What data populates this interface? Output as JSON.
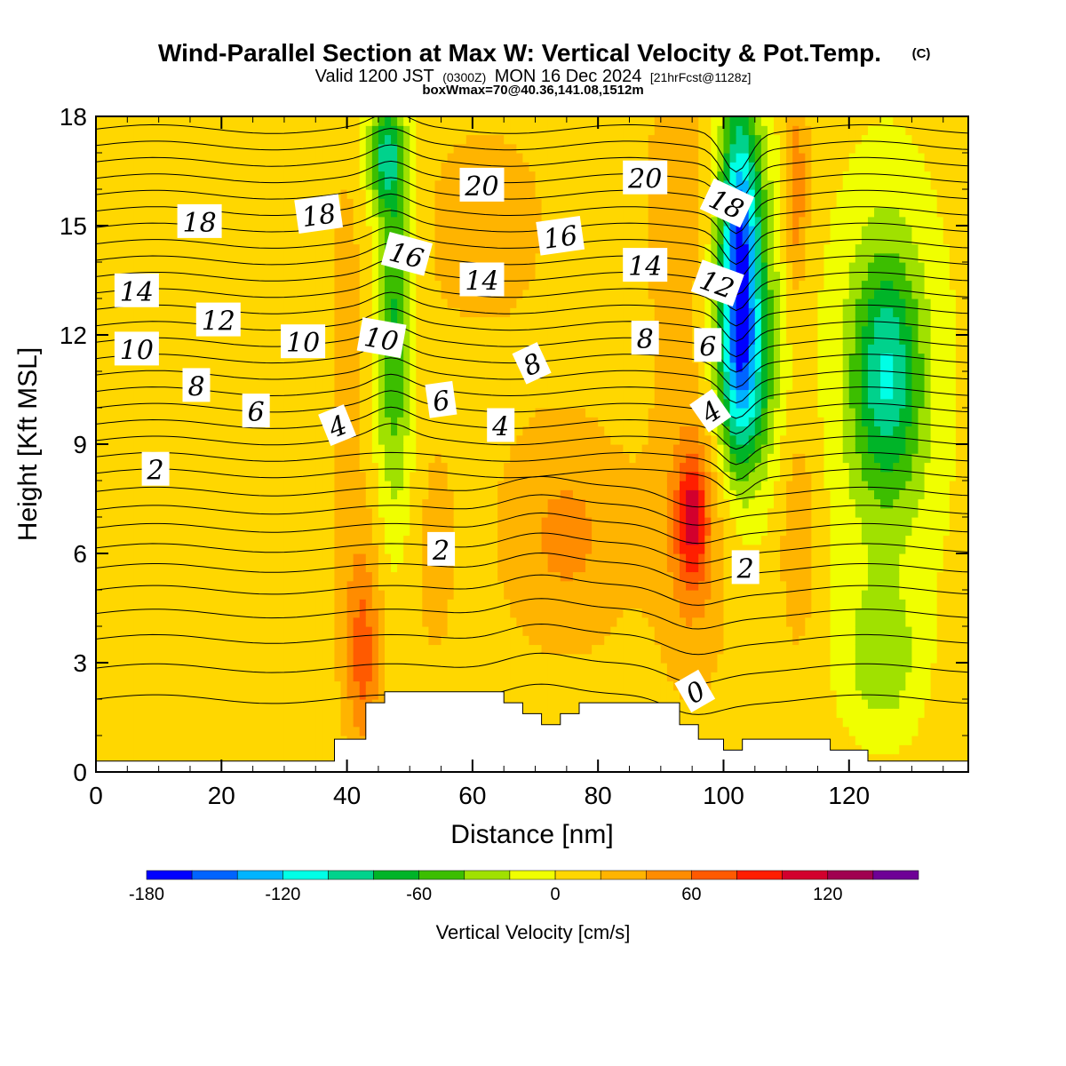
{
  "header": {
    "title": "Wind-Parallel Section at Max W: Vertical Velocity & Pot.Temp.",
    "title_mark": "(C)",
    "valid_prefix": "Valid 1200 JST",
    "valid_utc": "(0300Z)",
    "valid_date": "MON 16 Dec 2024",
    "valid_fcst": "[21hrFcst@1128z]",
    "box_info": "boxWmax=70@40.36,141.08,1512m"
  },
  "chart_data": {
    "type": "heatmap",
    "xlabel": "Distance [nm]",
    "ylabel": "Height [Kft MSL]",
    "xlim": [
      0,
      139
    ],
    "ylim": [
      0,
      18
    ],
    "x_ticks": [
      0,
      20,
      40,
      60,
      80,
      100,
      120
    ],
    "y_ticks": [
      0,
      3,
      6,
      9,
      12,
      15,
      18
    ],
    "grid": false,
    "colorbar": {
      "title": "Vertical Velocity [cm/s]",
      "levels": [
        -180,
        -160,
        -140,
        -120,
        -100,
        -80,
        -60,
        -40,
        -20,
        0,
        20,
        40,
        60,
        80,
        100,
        120,
        140,
        160
      ],
      "tick_labels": [
        -180,
        -120,
        -60,
        0,
        60,
        120
      ],
      "colors": [
        "#0000ff",
        "#0064ff",
        "#00b4ff",
        "#00ffe6",
        "#00d28c",
        "#00b428",
        "#3cbe00",
        "#a0e100",
        "#f0ff00",
        "#ffd700",
        "#ffb400",
        "#ff8c00",
        "#ff5a00",
        "#ff1e00",
        "#d2002d",
        "#a00050",
        "#6e0096"
      ]
    },
    "background_w": 10,
    "w_blobs": [
      {
        "x": 47.5,
        "y": 12.5,
        "sx": 3,
        "sy": 5.5,
        "w": -65
      },
      {
        "x": 46,
        "y": 17,
        "sx": 3,
        "sy": 1.5,
        "w": -65
      },
      {
        "x": 102.5,
        "y": 14.5,
        "sx": 3,
        "sy": 4,
        "w": -120
      },
      {
        "x": 103,
        "y": 10.5,
        "sx": 4,
        "sy": 2.5,
        "w": -60
      },
      {
        "x": 104,
        "y": 13,
        "sx": 5.5,
        "sy": 5,
        "w": -45
      },
      {
        "x": 126,
        "y": 11,
        "sx": 5,
        "sy": 3,
        "w": -60
      },
      {
        "x": 126,
        "y": 10.5,
        "sx": 9,
        "sy": 6,
        "w": -35
      },
      {
        "x": 125,
        "y": 3,
        "sx": 6,
        "sy": 2,
        "w": -30
      },
      {
        "x": 95,
        "y": 7,
        "sx": 2.5,
        "sy": 1.8,
        "w": 80
      },
      {
        "x": 95,
        "y": 6.5,
        "sx": 6,
        "sy": 4,
        "w": 45
      },
      {
        "x": 75,
        "y": 6.5,
        "sx": 10,
        "sy": 3,
        "w": 45
      },
      {
        "x": 112,
        "y": 6.5,
        "sx": 3,
        "sy": 3,
        "w": 40
      },
      {
        "x": 111.5,
        "y": 16,
        "sx": 2,
        "sy": 3,
        "w": 60
      },
      {
        "x": 93,
        "y": 15.5,
        "sx": 6,
        "sy": 5,
        "w": 30
      },
      {
        "x": 42.5,
        "y": 3,
        "sx": 2.5,
        "sy": 2.5,
        "w": 55
      },
      {
        "x": 42.5,
        "y": 4.5,
        "sx": 4,
        "sy": 3.5,
        "w": 30
      },
      {
        "x": 40,
        "y": 12,
        "sx": 3,
        "sy": 6,
        "w": 25
      },
      {
        "x": 62,
        "y": 15,
        "sx": 14,
        "sy": 4,
        "w": 25
      },
      {
        "x": 54,
        "y": 6,
        "sx": 4,
        "sy": 4,
        "w": 25
      },
      {
        "x": 30,
        "y": 5,
        "sx": 5,
        "sy": 4,
        "w": 18
      }
    ],
    "theta_contour_heights": [
      2.0,
      2.85,
      3.65,
      4.35,
      5.0,
      5.6,
      6.15,
      6.7,
      7.2,
      7.7,
      8.2,
      8.65,
      9.1,
      9.55,
      10.0,
      10.45,
      10.9,
      11.35,
      11.8,
      12.25,
      12.7,
      13.15,
      13.6,
      14.05,
      14.5,
      14.95,
      15.4,
      15.85,
      16.3,
      16.75,
      17.2,
      17.65
    ],
    "terrain_profile": [
      [
        0,
        0.3
      ],
      [
        38,
        0.3
      ],
      [
        38,
        0.9
      ],
      [
        43,
        0.9
      ],
      [
        43,
        1.9
      ],
      [
        46,
        1.9
      ],
      [
        46,
        2.2
      ],
      [
        65,
        2.2
      ],
      [
        65,
        1.9
      ],
      [
        68,
        1.9
      ],
      [
        68,
        1.6
      ],
      [
        71,
        1.6
      ],
      [
        71,
        1.3
      ],
      [
        74,
        1.3
      ],
      [
        74,
        1.6
      ],
      [
        77,
        1.6
      ],
      [
        77,
        1.9
      ],
      [
        93,
        1.9
      ],
      [
        93,
        1.3
      ],
      [
        96,
        1.3
      ],
      [
        96,
        0.9
      ],
      [
        100,
        0.9
      ],
      [
        100,
        0.6
      ],
      [
        103,
        0.6
      ],
      [
        103,
        0.9
      ],
      [
        117,
        0.9
      ],
      [
        117,
        0.6
      ],
      [
        123,
        0.6
      ],
      [
        123,
        0.3
      ],
      [
        139,
        0.3
      ]
    ],
    "contour_labels": [
      {
        "text": "20",
        "x": 61.5,
        "y": 16.1,
        "angle": 0
      },
      {
        "text": "20",
        "x": 87.5,
        "y": 16.3,
        "angle": 0
      },
      {
        "text": "18",
        "x": 16.5,
        "y": 15.1,
        "angle": 0
      },
      {
        "text": "18",
        "x": 35.5,
        "y": 15.3,
        "angle": -8
      },
      {
        "text": "18",
        "x": 100.5,
        "y": 15.6,
        "angle": 25
      },
      {
        "text": "16",
        "x": 49.5,
        "y": 14.2,
        "angle": 15
      },
      {
        "text": "16",
        "x": 74,
        "y": 14.7,
        "angle": -8
      },
      {
        "text": "14",
        "x": 6.5,
        "y": 13.2,
        "angle": 0
      },
      {
        "text": "14",
        "x": 61.5,
        "y": 13.5,
        "angle": 0
      },
      {
        "text": "14",
        "x": 87.5,
        "y": 13.9,
        "angle": 0
      },
      {
        "text": "12",
        "x": 19.5,
        "y": 12.4,
        "angle": 0
      },
      {
        "text": "12",
        "x": 99,
        "y": 13.4,
        "angle": 20
      },
      {
        "text": "10",
        "x": 6.5,
        "y": 11.6,
        "angle": 0
      },
      {
        "text": "10",
        "x": 33,
        "y": 11.8,
        "angle": 0
      },
      {
        "text": "10",
        "x": 45.5,
        "y": 11.9,
        "angle": 10
      },
      {
        "text": "8",
        "x": 16,
        "y": 10.6,
        "angle": 0
      },
      {
        "text": "8",
        "x": 69.5,
        "y": 11.2,
        "angle": -25
      },
      {
        "text": "8",
        "x": 87.5,
        "y": 11.9,
        "angle": 0
      },
      {
        "text": "6",
        "x": 25.5,
        "y": 9.9,
        "angle": 0
      },
      {
        "text": "6",
        "x": 55,
        "y": 10.2,
        "angle": -8
      },
      {
        "text": "6",
        "x": 97.5,
        "y": 11.7,
        "angle": 0
      },
      {
        "text": "4",
        "x": 38.5,
        "y": 9.5,
        "angle": -22
      },
      {
        "text": "4",
        "x": 64.5,
        "y": 9.5,
        "angle": 0
      },
      {
        "text": "4",
        "x": 98,
        "y": 9.9,
        "angle": -35
      },
      {
        "text": "2",
        "x": 9.5,
        "y": 8.3,
        "angle": 0
      },
      {
        "text": "2",
        "x": 55,
        "y": 6.1,
        "angle": 0
      },
      {
        "text": "2",
        "x": 103.5,
        "y": 5.6,
        "angle": 0
      },
      {
        "text": "0",
        "x": 95.5,
        "y": 2.2,
        "angle": -30
      }
    ]
  }
}
